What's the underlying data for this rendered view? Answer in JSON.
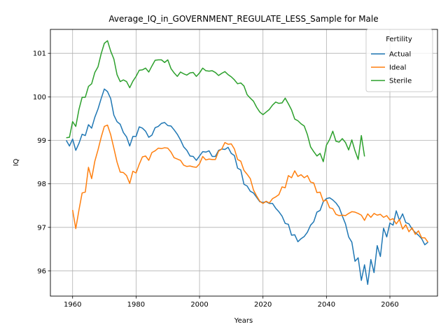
{
  "chart_data": {
    "type": "line",
    "title": "Average_IQ_in_GOVERNMENT_REGULATE_LESS_Sample for Male",
    "xlabel": "Years",
    "ylabel": "IQ",
    "xlim": [
      1953,
      2075
    ],
    "ylim": [
      95.42,
      101.55
    ],
    "xticks": [
      1960,
      1980,
      2000,
      2020,
      2040,
      2060
    ],
    "yticks": [
      96,
      97,
      98,
      99,
      100,
      101
    ],
    "grid": true,
    "legend": {
      "title": "Fertility",
      "placement": "top-right"
    },
    "series": [
      {
        "name": "Actual",
        "color": "#1f77b4",
        "x_start": 1958,
        "step": 1,
        "values": [
          99.0,
          98.87,
          99.03,
          98.77,
          98.93,
          99.14,
          99.11,
          99.36,
          99.28,
          99.53,
          99.72,
          99.96,
          100.18,
          100.12,
          99.96,
          99.58,
          99.43,
          99.37,
          99.18,
          99.08,
          98.87,
          99.09,
          99.09,
          99.31,
          99.28,
          99.21,
          99.07,
          99.12,
          99.29,
          99.32,
          99.39,
          99.41,
          99.34,
          99.33,
          99.24,
          99.14,
          99.01,
          98.85,
          98.77,
          98.64,
          98.63,
          98.54,
          98.64,
          98.74,
          98.73,
          98.76,
          98.63,
          98.63,
          98.77,
          98.8,
          98.79,
          98.84,
          98.7,
          98.65,
          98.36,
          98.32,
          97.99,
          97.95,
          97.83,
          97.79,
          97.69,
          97.59,
          97.57,
          97.59,
          97.55,
          97.55,
          97.44,
          97.36,
          97.26,
          97.09,
          97.07,
          96.82,
          96.83,
          96.67,
          96.74,
          96.79,
          96.89,
          97.05,
          97.13,
          97.35,
          97.39,
          97.59,
          97.66,
          97.68,
          97.63,
          97.56,
          97.46,
          97.26,
          97.08,
          96.78,
          96.66,
          96.22,
          96.3,
          95.78,
          96.14,
          95.69,
          96.26,
          95.96,
          96.58,
          96.33,
          96.98,
          96.78,
          97.1,
          97.05,
          97.38,
          97.16,
          97.31,
          97.11,
          97.08,
          96.96,
          96.88,
          96.82,
          96.74,
          96.6,
          96.66
        ]
      },
      {
        "name": "Ideal",
        "color": "#ff7f0e",
        "x_start": 1960,
        "step": 1,
        "values": [
          97.4,
          96.97,
          97.4,
          97.79,
          97.81,
          98.38,
          98.12,
          98.52,
          98.78,
          99.07,
          99.32,
          99.35,
          99.13,
          98.82,
          98.5,
          98.27,
          98.26,
          98.19,
          98.01,
          98.29,
          98.25,
          98.45,
          98.62,
          98.64,
          98.54,
          98.72,
          98.76,
          98.82,
          98.81,
          98.83,
          98.82,
          98.73,
          98.6,
          98.57,
          98.54,
          98.43,
          98.4,
          98.41,
          98.39,
          98.38,
          98.46,
          98.63,
          98.55,
          98.57,
          98.56,
          98.56,
          98.75,
          98.8,
          98.95,
          98.91,
          98.92,
          98.8,
          98.56,
          98.52,
          98.31,
          98.22,
          98.12,
          97.86,
          97.72,
          97.6,
          97.55,
          97.6,
          97.56,
          97.66,
          97.7,
          97.75,
          97.93,
          97.91,
          98.19,
          98.14,
          98.3,
          98.17,
          98.21,
          98.14,
          98.19,
          98.04,
          98.02,
          97.8,
          97.81,
          97.6,
          97.63,
          97.45,
          97.43,
          97.3,
          97.27,
          97.28,
          97.27,
          97.32,
          97.36,
          97.35,
          97.32,
          97.28,
          97.16,
          97.31,
          97.23,
          97.32,
          97.28,
          97.3,
          97.23,
          97.27,
          97.17,
          97.2,
          97.08,
          97.18,
          96.96,
          97.06,
          96.9,
          96.99,
          96.84,
          96.92,
          96.76,
          96.76,
          96.66
        ]
      },
      {
        "name": "Sterile",
        "color": "#2ca02c",
        "x_start": 1958,
        "step": 1,
        "values": [
          99.06,
          99.07,
          99.43,
          99.32,
          99.71,
          99.99,
          99.99,
          100.24,
          100.3,
          100.56,
          100.69,
          100.99,
          101.23,
          101.29,
          101.05,
          100.87,
          100.51,
          100.35,
          100.39,
          100.35,
          100.21,
          100.36,
          100.47,
          100.61,
          100.62,
          100.66,
          100.57,
          100.71,
          100.84,
          100.85,
          100.85,
          100.79,
          100.85,
          100.65,
          100.55,
          100.47,
          100.57,
          100.53,
          100.5,
          100.55,
          100.56,
          100.47,
          100.55,
          100.66,
          100.6,
          100.59,
          100.6,
          100.56,
          100.49,
          100.54,
          100.58,
          100.51,
          100.46,
          100.39,
          100.3,
          100.32,
          100.25,
          100.05,
          99.97,
          99.9,
          99.76,
          99.65,
          99.59,
          99.65,
          99.71,
          99.81,
          99.88,
          99.85,
          99.86,
          99.97,
          99.84,
          99.7,
          99.49,
          99.45,
          99.38,
          99.33,
          99.13,
          98.85,
          98.74,
          98.64,
          98.7,
          98.51,
          98.89,
          99.02,
          99.21,
          98.98,
          98.96,
          99.04,
          98.95,
          98.78,
          99.01,
          98.76,
          98.56,
          99.11,
          98.63
        ]
      }
    ]
  }
}
